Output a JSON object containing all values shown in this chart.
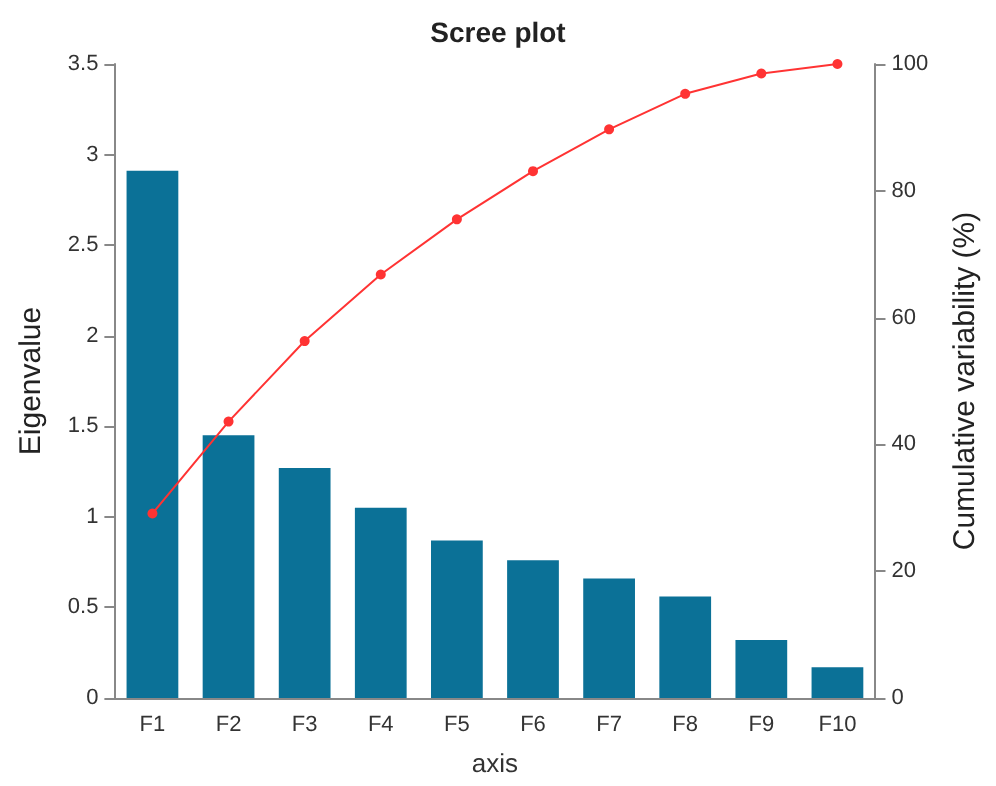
{
  "chart_data": {
    "type": "bar",
    "title": "Scree plot",
    "xlabel": "axis",
    "ylabel": "Eigenvalue",
    "y2label": "Cumulative variability (%)",
    "categories": [
      "F1",
      "F2",
      "F3",
      "F4",
      "F5",
      "F6",
      "F7",
      "F8",
      "F9",
      "F10"
    ],
    "series": [
      {
        "color": "#0b7197",
        "values": [
          2.91,
          1.45,
          1.27,
          1.05,
          0.87,
          0.76,
          0.66,
          0.56,
          0.32,
          0.17
        ]
      },
      {
        "type": "line",
        "axis": "y2",
        "color": "#ff3333",
        "values": [
          29.1,
          43.6,
          56.3,
          66.8,
          75.5,
          83.1,
          89.7,
          95.3,
          98.5,
          100
        ]
      }
    ],
    "ylim": [
      0,
      3.5
    ],
    "yticks": [
      0,
      0.5,
      1,
      1.5,
      2,
      2.5,
      3,
      3.5
    ],
    "y2lim": [
      0,
      100
    ],
    "y2ticks": [
      0,
      20,
      40,
      60,
      80,
      100
    ],
    "grid": false,
    "marker": "circle"
  }
}
